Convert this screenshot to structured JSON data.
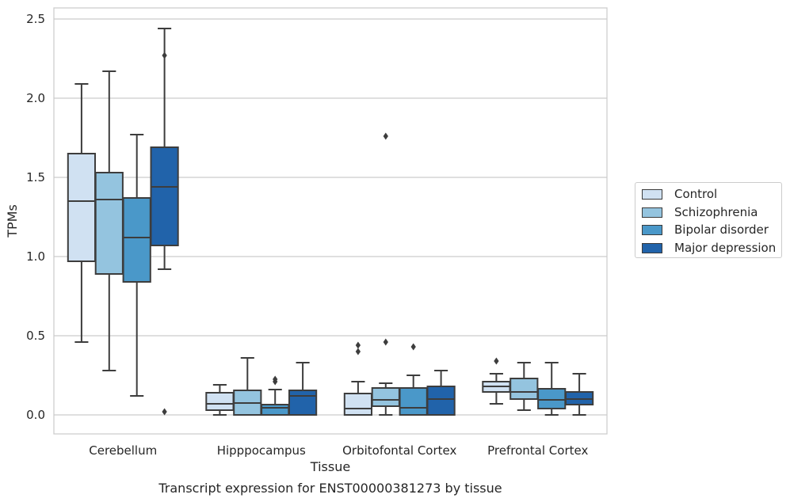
{
  "chart_data": {
    "type": "box",
    "title": "",
    "xlabel": "Tissue",
    "ylabel": "TPMs",
    "caption": "Transcript expression for ENST00000381273 by tissue",
    "categories": [
      "Cerebellum",
      "Hipppocampus",
      "Orbitofontal Cortex",
      "Prefrontal Cortex"
    ],
    "ylim": [
      -0.12,
      2.57
    ],
    "yticks": [
      0.0,
      0.5,
      1.0,
      1.5,
      2.0,
      2.5
    ],
    "ytick_labels": [
      "0.0",
      "0.5",
      "1.0",
      "1.5",
      "2.0",
      "2.5"
    ],
    "grid": true,
    "legend_position": "right",
    "colors": [
      "#d0e1f2",
      "#94c4df",
      "#4a98c9",
      "#2163aa"
    ],
    "series": [
      {
        "name": "Control",
        "boxes": [
          {
            "whislo": 0.46,
            "q1": 0.97,
            "med": 1.35,
            "q3": 1.65,
            "whishi": 2.09,
            "fliers": []
          },
          {
            "whislo": 0.0,
            "q1": 0.03,
            "med": 0.07,
            "q3": 0.14,
            "whishi": 0.19,
            "fliers": []
          },
          {
            "whislo": 0.0,
            "q1": 0.0,
            "med": 0.04,
            "q3": 0.135,
            "whishi": 0.21,
            "fliers": [
              0.4,
              0.44
            ]
          },
          {
            "whislo": 0.07,
            "q1": 0.145,
            "med": 0.18,
            "q3": 0.21,
            "whishi": 0.26,
            "fliers": [
              0.34
            ]
          }
        ]
      },
      {
        "name": "Schizophrenia",
        "boxes": [
          {
            "whislo": 0.28,
            "q1": 0.89,
            "med": 1.36,
            "q3": 1.53,
            "whishi": 2.17,
            "fliers": []
          },
          {
            "whislo": 0.0,
            "q1": 0.0,
            "med": 0.075,
            "q3": 0.155,
            "whishi": 0.36,
            "fliers": []
          },
          {
            "whislo": 0.0,
            "q1": 0.055,
            "med": 0.095,
            "q3": 0.17,
            "whishi": 0.2,
            "fliers": [
              0.46,
              1.76
            ]
          },
          {
            "whislo": 0.03,
            "q1": 0.1,
            "med": 0.145,
            "q3": 0.23,
            "whishi": 0.33,
            "fliers": []
          }
        ]
      },
      {
        "name": "Bipolar disorder",
        "boxes": [
          {
            "whislo": 0.12,
            "q1": 0.84,
            "med": 1.12,
            "q3": 1.37,
            "whishi": 1.77,
            "fliers": []
          },
          {
            "whislo": 0.0,
            "q1": 0.0,
            "med": 0.045,
            "q3": 0.065,
            "whishi": 0.16,
            "fliers": [
              0.21,
              0.225
            ]
          },
          {
            "whislo": 0.0,
            "q1": 0.0,
            "med": 0.045,
            "q3": 0.17,
            "whishi": 0.25,
            "fliers": [
              0.43
            ]
          },
          {
            "whislo": 0.0,
            "q1": 0.04,
            "med": 0.095,
            "q3": 0.165,
            "whishi": 0.33,
            "fliers": []
          }
        ]
      },
      {
        "name": "Major depression",
        "boxes": [
          {
            "whislo": 0.92,
            "q1": 1.07,
            "med": 1.44,
            "q3": 1.69,
            "whishi": 2.44,
            "fliers": [
              2.27,
              0.02
            ]
          },
          {
            "whislo": 0.0,
            "q1": 0.0,
            "med": 0.12,
            "q3": 0.155,
            "whishi": 0.33,
            "fliers": []
          },
          {
            "whislo": 0.0,
            "q1": 0.0,
            "med": 0.1,
            "q3": 0.18,
            "whishi": 0.28,
            "fliers": []
          },
          {
            "whislo": 0.0,
            "q1": 0.065,
            "med": 0.1,
            "q3": 0.145,
            "whishi": 0.26,
            "fliers": []
          }
        ]
      }
    ]
  }
}
